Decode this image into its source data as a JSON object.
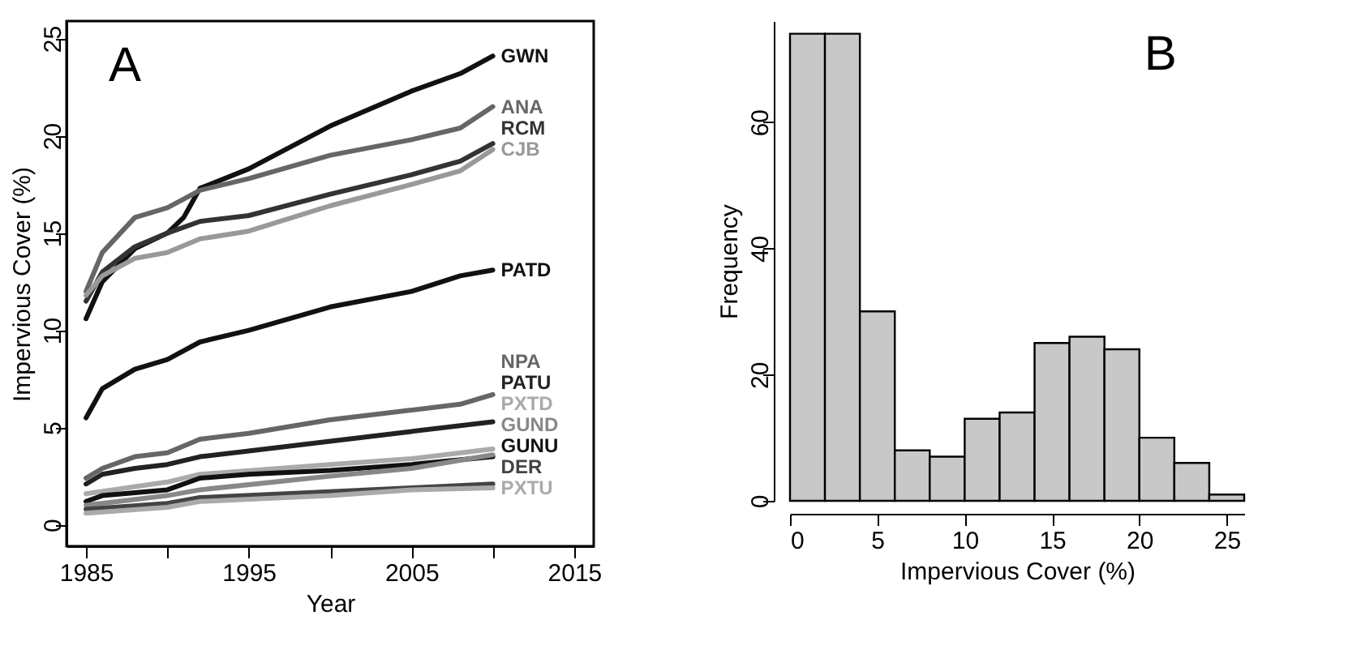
{
  "chart_data": [
    {
      "type": "line",
      "xlabel": "Year",
      "ylabel": "Impervious Cover (%)",
      "annotations": [
        "A"
      ],
      "xlim": [
        1983.8,
        2016.2
      ],
      "ylim": [
        -1.1,
        25.9
      ],
      "xticks": [
        1985,
        {
          "value": 1990,
          "label": null
        },
        1995,
        {
          "value": 2000,
          "label": null
        },
        2005,
        {
          "value": 2010,
          "label": null
        },
        2015
      ],
      "yticks": [
        0,
        5,
        10,
        15,
        20,
        25
      ],
      "grid": false,
      "marker": "none",
      "line_style": "solid",
      "series": [
        {
          "name": "GWN",
          "color": "#111111",
          "x": [
            1985,
            1986,
            1988,
            1990,
            1991,
            1992,
            1995,
            2000,
            2005,
            2008,
            2010
          ],
          "values": [
            10.6,
            12.5,
            14.2,
            15.0,
            15.8,
            17.3,
            18.3,
            20.5,
            22.3,
            23.2,
            24.1
          ]
        },
        {
          "name": "ANA",
          "color": "#666666",
          "x": [
            1985,
            1986,
            1988,
            1990,
            1992,
            1995,
            2000,
            2005,
            2008,
            2010
          ],
          "values": [
            12.0,
            14.0,
            15.8,
            16.3,
            17.2,
            17.8,
            19.0,
            19.8,
            20.4,
            21.5
          ]
        },
        {
          "name": "RCM",
          "color": "#333333",
          "x": [
            1985,
            1986,
            1988,
            1990,
            1992,
            1995,
            2000,
            2005,
            2008,
            2010
          ],
          "values": [
            11.5,
            13.0,
            14.3,
            15.0,
            15.6,
            15.9,
            17.0,
            18.0,
            18.7,
            19.6
          ]
        },
        {
          "name": "CJB",
          "color": "#999999",
          "x": [
            1985,
            1986,
            1988,
            1990,
            1992,
            1995,
            2000,
            2005,
            2008,
            2010
          ],
          "values": [
            11.8,
            12.8,
            13.7,
            14.0,
            14.7,
            15.1,
            16.4,
            17.5,
            18.2,
            19.3
          ]
        },
        {
          "name": "PATD",
          "color": "#111111",
          "x": [
            1985,
            1986,
            1988,
            1990,
            1992,
            1995,
            2000,
            2005,
            2008,
            2010
          ],
          "values": [
            5.5,
            7.0,
            8.0,
            8.5,
            9.4,
            10.0,
            11.2,
            12.0,
            12.8,
            13.1
          ]
        },
        {
          "name": "NPA",
          "color": "#666666",
          "x": [
            1985,
            1986,
            1988,
            1990,
            1992,
            1995,
            2000,
            2005,
            2008,
            2010
          ],
          "values": [
            2.4,
            2.9,
            3.5,
            3.7,
            4.4,
            4.7,
            5.4,
            5.9,
            6.2,
            6.7
          ]
        },
        {
          "name": "PATU",
          "color": "#222222",
          "x": [
            1985,
            1986,
            1988,
            1990,
            1992,
            1995,
            2000,
            2005,
            2010
          ],
          "values": [
            2.1,
            2.6,
            2.9,
            3.1,
            3.5,
            3.8,
            4.3,
            4.8,
            5.3
          ]
        },
        {
          "name": "PXTD",
          "color": "#aaaaaa",
          "x": [
            1985,
            1990,
            1992,
            2000,
            2005,
            2010
          ],
          "values": [
            1.6,
            2.2,
            2.6,
            3.1,
            3.4,
            3.9
          ]
        },
        {
          "name": "GUNU",
          "color": "#111111",
          "x": [
            1985,
            1986,
            1990,
            1992,
            1995,
            2000,
            2005,
            2010
          ],
          "values": [
            1.2,
            1.5,
            1.8,
            2.4,
            2.6,
            2.8,
            3.1,
            3.5
          ]
        },
        {
          "name": "GUND",
          "color": "#888888",
          "x": [
            1985,
            1990,
            1992,
            2000,
            2005,
            2010
          ],
          "values": [
            1.0,
            1.5,
            1.8,
            2.5,
            2.9,
            3.6
          ]
        },
        {
          "name": "DER",
          "color": "#444444",
          "x": [
            1985,
            1990,
            1992,
            2000,
            2005,
            2010
          ],
          "values": [
            0.8,
            1.1,
            1.4,
            1.7,
            1.9,
            2.1
          ]
        },
        {
          "name": "PXTU",
          "color": "#aaaaaa",
          "x": [
            1985,
            1990,
            1992,
            2000,
            2005,
            2010
          ],
          "values": [
            0.6,
            0.9,
            1.2,
            1.5,
            1.8,
            1.9
          ]
        }
      ]
    },
    {
      "type": "histogram",
      "xlabel": "Impervious Cover (%)",
      "ylabel": "Frequency",
      "annotations": [
        "B"
      ],
      "color": "#c8c8c8",
      "bins": [
        0,
        2,
        4,
        6,
        8,
        10,
        12,
        14,
        16,
        18,
        20,
        22,
        24,
        26
      ],
      "values": [
        74,
        74,
        30,
        8,
        7,
        13,
        14,
        25,
        26,
        24,
        10,
        6,
        1
      ],
      "xlim": [
        0,
        26
      ],
      "ylim": [
        0,
        76
      ],
      "xticks": [
        0,
        5,
        10,
        15,
        20,
        25
      ],
      "yticks": [
        0,
        20,
        40,
        60
      ],
      "grid": false
    }
  ]
}
